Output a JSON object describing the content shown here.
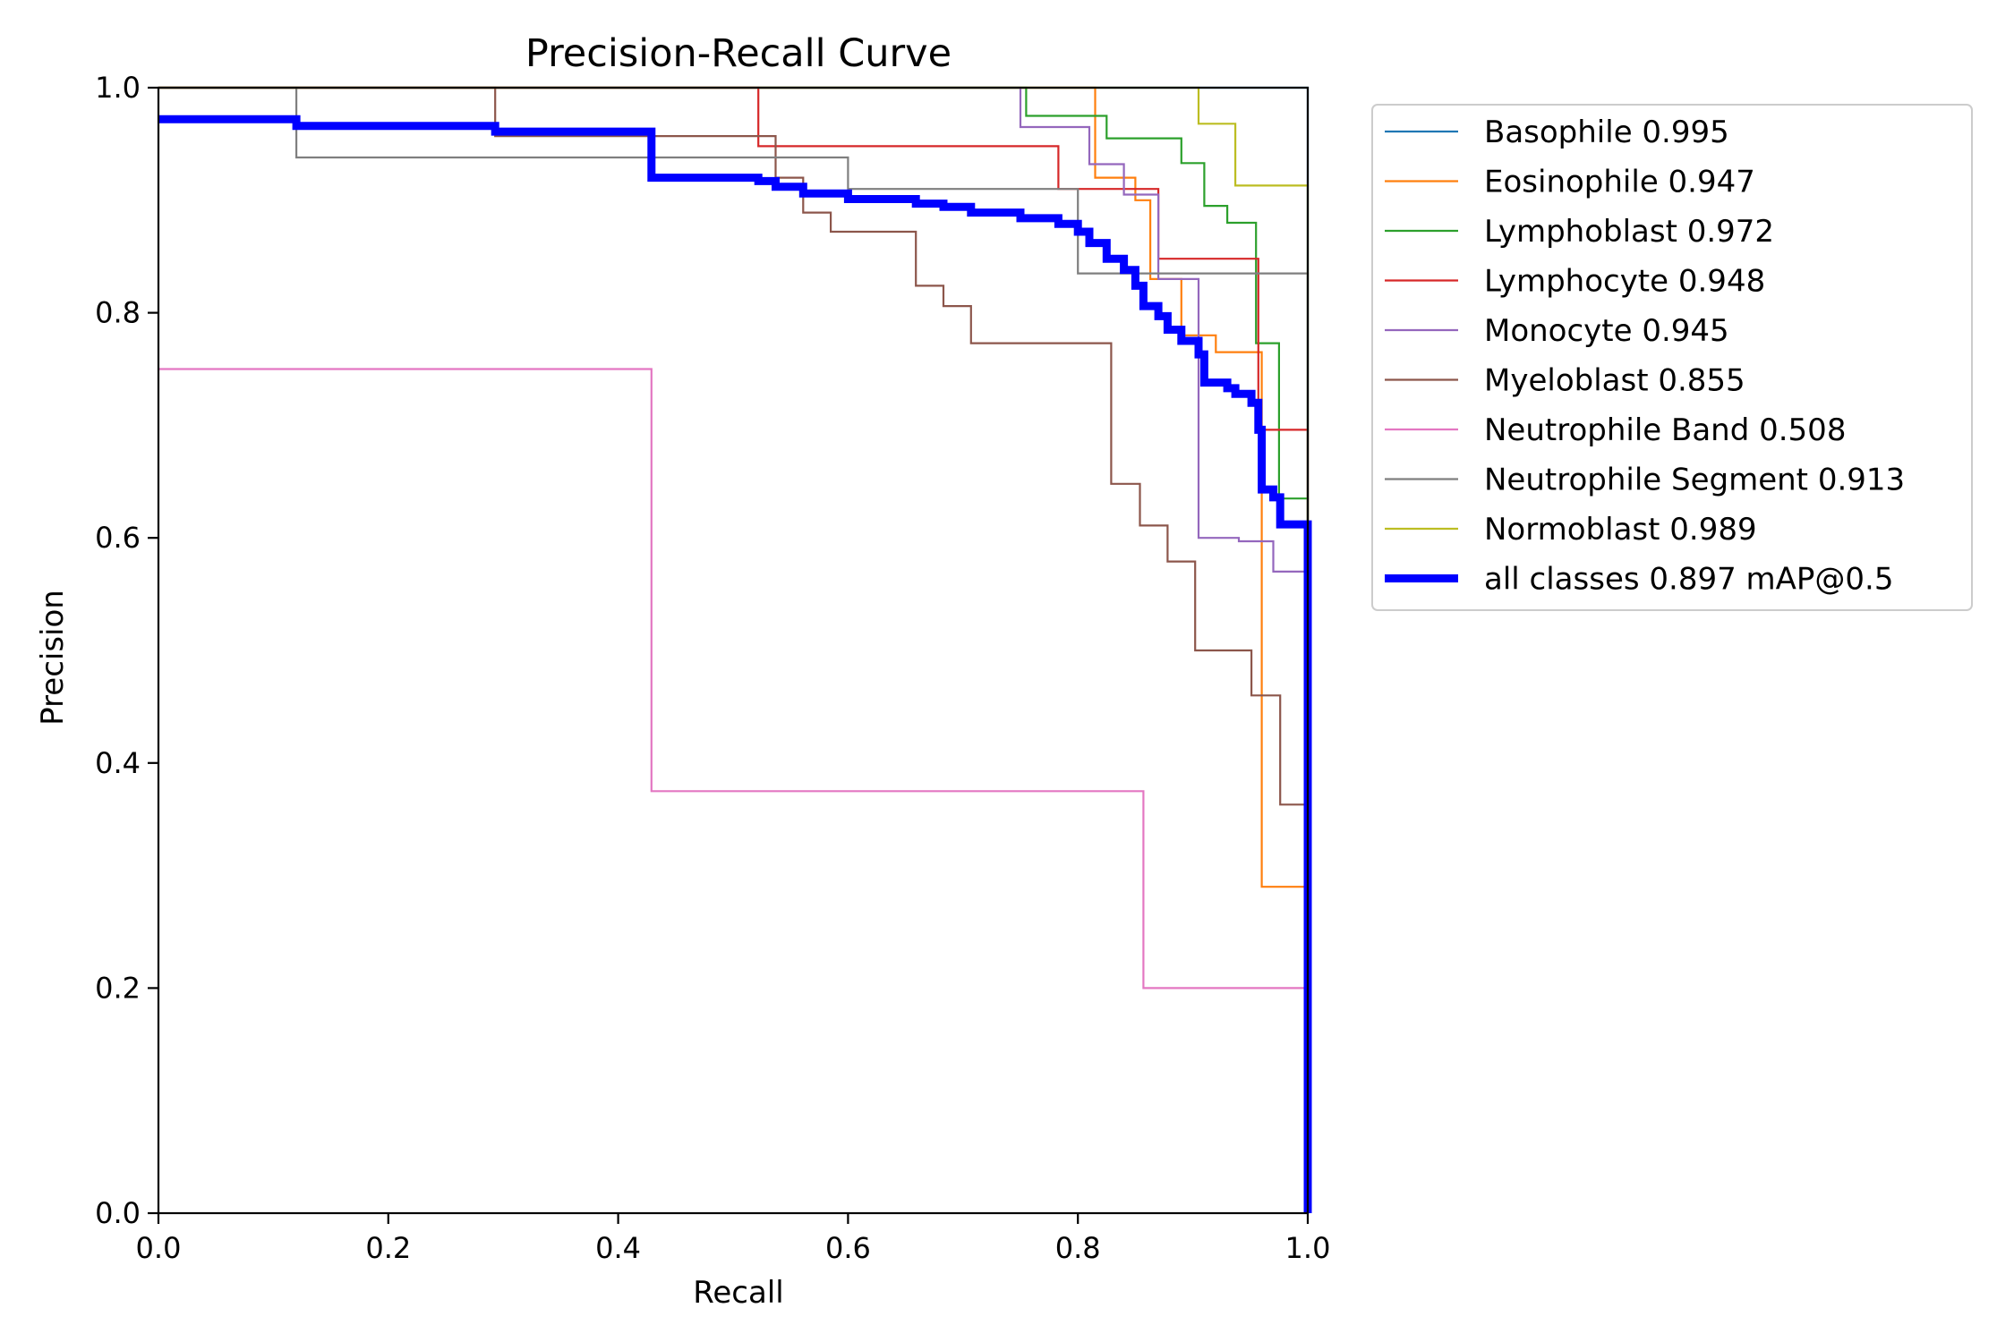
{
  "chart_data": {
    "type": "line",
    "title": "Precision-Recall Curve",
    "xlabel": "Recall",
    "ylabel": "Precision",
    "xlim": [
      0.0,
      1.0
    ],
    "ylim": [
      0.0,
      1.0
    ],
    "xticks": [
      "0.0",
      "0.2",
      "0.4",
      "0.6",
      "0.8",
      "1.0"
    ],
    "yticks": [
      "0.0",
      "0.2",
      "0.4",
      "0.6",
      "0.8",
      "1.0"
    ],
    "grid": false,
    "legend_position": "outside-right-top",
    "series": [
      {
        "name": "Basophile 0.995",
        "color": "#1f77b4",
        "width": "thin",
        "points": [
          [
            0,
            1.0
          ],
          [
            1.0,
            1.0
          ],
          [
            1.0,
            0.0
          ]
        ]
      },
      {
        "name": "Eosinophile 0.947",
        "color": "#ff7f0e",
        "width": "thin",
        "points": [
          [
            0,
            1.0
          ],
          [
            0.815,
            1.0
          ],
          [
            0.815,
            0.92
          ],
          [
            0.85,
            0.92
          ],
          [
            0.85,
            0.9
          ],
          [
            0.863,
            0.9
          ],
          [
            0.863,
            0.83
          ],
          [
            0.89,
            0.83
          ],
          [
            0.89,
            0.78
          ],
          [
            0.92,
            0.78
          ],
          [
            0.92,
            0.765
          ],
          [
            0.96,
            0.765
          ],
          [
            0.96,
            0.29
          ],
          [
            1.0,
            0.29
          ],
          [
            1.0,
            0.0
          ]
        ]
      },
      {
        "name": "Lymphoblast 0.972",
        "color": "#2ca02c",
        "width": "thin",
        "points": [
          [
            0,
            1.0
          ],
          [
            0.755,
            1.0
          ],
          [
            0.755,
            0.975
          ],
          [
            0.825,
            0.975
          ],
          [
            0.825,
            0.955
          ],
          [
            0.89,
            0.955
          ],
          [
            0.89,
            0.933
          ],
          [
            0.91,
            0.933
          ],
          [
            0.91,
            0.895
          ],
          [
            0.93,
            0.895
          ],
          [
            0.93,
            0.88
          ],
          [
            0.955,
            0.88
          ],
          [
            0.955,
            0.773
          ],
          [
            0.975,
            0.773
          ],
          [
            0.975,
            0.635
          ],
          [
            1.0,
            0.635
          ],
          [
            1.0,
            0.0
          ]
        ]
      },
      {
        "name": "Lymphocyte 0.948",
        "color": "#d62728",
        "width": "thin",
        "points": [
          [
            0,
            1.0
          ],
          [
            0.522,
            1.0
          ],
          [
            0.522,
            0.948
          ],
          [
            0.783,
            0.948
          ],
          [
            0.783,
            0.91
          ],
          [
            0.87,
            0.91
          ],
          [
            0.87,
            0.848
          ],
          [
            0.957,
            0.848
          ],
          [
            0.957,
            0.696
          ],
          [
            1.0,
            0.696
          ],
          [
            1.0,
            0.0
          ]
        ]
      },
      {
        "name": "Monocyte 0.945",
        "color": "#9467bd",
        "width": "thin",
        "points": [
          [
            0,
            1.0
          ],
          [
            0.75,
            1.0
          ],
          [
            0.75,
            0.965
          ],
          [
            0.81,
            0.965
          ],
          [
            0.81,
            0.932
          ],
          [
            0.84,
            0.932
          ],
          [
            0.84,
            0.905
          ],
          [
            0.87,
            0.905
          ],
          [
            0.87,
            0.83
          ],
          [
            0.905,
            0.83
          ],
          [
            0.905,
            0.6
          ],
          [
            0.94,
            0.6
          ],
          [
            0.94,
            0.597
          ],
          [
            0.97,
            0.597
          ],
          [
            0.97,
            0.57
          ],
          [
            1.0,
            0.57
          ],
          [
            1.0,
            0.0
          ]
        ]
      },
      {
        "name": "Myeloblast 0.855",
        "color": "#8c564b",
        "width": "thin",
        "points": [
          [
            0,
            1.0
          ],
          [
            0.293,
            1.0
          ],
          [
            0.293,
            0.957
          ],
          [
            0.537,
            0.957
          ],
          [
            0.537,
            0.92
          ],
          [
            0.561,
            0.92
          ],
          [
            0.561,
            0.889
          ],
          [
            0.585,
            0.889
          ],
          [
            0.585,
            0.872
          ],
          [
            0.659,
            0.872
          ],
          [
            0.659,
            0.824
          ],
          [
            0.683,
            0.824
          ],
          [
            0.683,
            0.806
          ],
          [
            0.707,
            0.806
          ],
          [
            0.707,
            0.773
          ],
          [
            0.829,
            0.773
          ],
          [
            0.829,
            0.648
          ],
          [
            0.854,
            0.648
          ],
          [
            0.854,
            0.611
          ],
          [
            0.878,
            0.611
          ],
          [
            0.878,
            0.579
          ],
          [
            0.902,
            0.579
          ],
          [
            0.902,
            0.5
          ],
          [
            0.951,
            0.5
          ],
          [
            0.951,
            0.46
          ],
          [
            0.976,
            0.46
          ],
          [
            0.976,
            0.363
          ],
          [
            1.0,
            0.363
          ],
          [
            1.0,
            0.0
          ]
        ]
      },
      {
        "name": "Neutrophile Band 0.508",
        "color": "#e377c2",
        "width": "thin",
        "points": [
          [
            0,
            0.75
          ],
          [
            0.429,
            0.75
          ],
          [
            0.429,
            0.375
          ],
          [
            0.857,
            0.375
          ],
          [
            0.857,
            0.2
          ],
          [
            1.0,
            0.2
          ],
          [
            1.0,
            0.0
          ]
        ]
      },
      {
        "name": "Neutrophile Segment 0.913",
        "color": "#7f7f7f",
        "width": "thin",
        "points": [
          [
            0,
            1.0
          ],
          [
            0.12,
            1.0
          ],
          [
            0.12,
            0.938
          ],
          [
            0.6,
            0.938
          ],
          [
            0.6,
            0.91
          ],
          [
            0.8,
            0.91
          ],
          [
            0.8,
            0.835
          ],
          [
            1.0,
            0.835
          ],
          [
            1.0,
            0.0
          ]
        ]
      },
      {
        "name": "Normoblast 0.989",
        "color": "#bcbd22",
        "width": "thin",
        "points": [
          [
            0,
            1.0
          ],
          [
            0.905,
            1.0
          ],
          [
            0.905,
            0.968
          ],
          [
            0.937,
            0.968
          ],
          [
            0.937,
            0.913
          ],
          [
            1.0,
            0.913
          ],
          [
            1.0,
            0.0
          ]
        ]
      },
      {
        "name": "all classes 0.897 mAP@0.5",
        "color": "#0000ff",
        "width": "thick",
        "points": [
          [
            0,
            0.972
          ],
          [
            0.12,
            0.972
          ],
          [
            0.12,
            0.966
          ],
          [
            0.293,
            0.966
          ],
          [
            0.293,
            0.961
          ],
          [
            0.429,
            0.961
          ],
          [
            0.429,
            0.92
          ],
          [
            0.522,
            0.92
          ],
          [
            0.522,
            0.917
          ],
          [
            0.537,
            0.917
          ],
          [
            0.537,
            0.912
          ],
          [
            0.561,
            0.912
          ],
          [
            0.561,
            0.906
          ],
          [
            0.6,
            0.906
          ],
          [
            0.6,
            0.901
          ],
          [
            0.659,
            0.901
          ],
          [
            0.659,
            0.897
          ],
          [
            0.683,
            0.897
          ],
          [
            0.683,
            0.894
          ],
          [
            0.707,
            0.894
          ],
          [
            0.707,
            0.889
          ],
          [
            0.75,
            0.889
          ],
          [
            0.75,
            0.884
          ],
          [
            0.783,
            0.884
          ],
          [
            0.783,
            0.879
          ],
          [
            0.8,
            0.879
          ],
          [
            0.8,
            0.872
          ],
          [
            0.81,
            0.872
          ],
          [
            0.81,
            0.862
          ],
          [
            0.825,
            0.862
          ],
          [
            0.825,
            0.848
          ],
          [
            0.84,
            0.848
          ],
          [
            0.84,
            0.838
          ],
          [
            0.85,
            0.838
          ],
          [
            0.85,
            0.824
          ],
          [
            0.857,
            0.824
          ],
          [
            0.857,
            0.806
          ],
          [
            0.87,
            0.806
          ],
          [
            0.87,
            0.797
          ],
          [
            0.878,
            0.797
          ],
          [
            0.878,
            0.785
          ],
          [
            0.89,
            0.785
          ],
          [
            0.89,
            0.775
          ],
          [
            0.905,
            0.775
          ],
          [
            0.905,
            0.763
          ],
          [
            0.91,
            0.763
          ],
          [
            0.91,
            0.738
          ],
          [
            0.93,
            0.738
          ],
          [
            0.93,
            0.733
          ],
          [
            0.937,
            0.733
          ],
          [
            0.937,
            0.728
          ],
          [
            0.951,
            0.728
          ],
          [
            0.951,
            0.72
          ],
          [
            0.957,
            0.72
          ],
          [
            0.957,
            0.696
          ],
          [
            0.96,
            0.696
          ],
          [
            0.96,
            0.643
          ],
          [
            0.97,
            0.643
          ],
          [
            0.97,
            0.636
          ],
          [
            0.976,
            0.636
          ],
          [
            0.976,
            0.612
          ],
          [
            1.0,
            0.612
          ],
          [
            1.0,
            0.0
          ]
        ]
      }
    ]
  }
}
